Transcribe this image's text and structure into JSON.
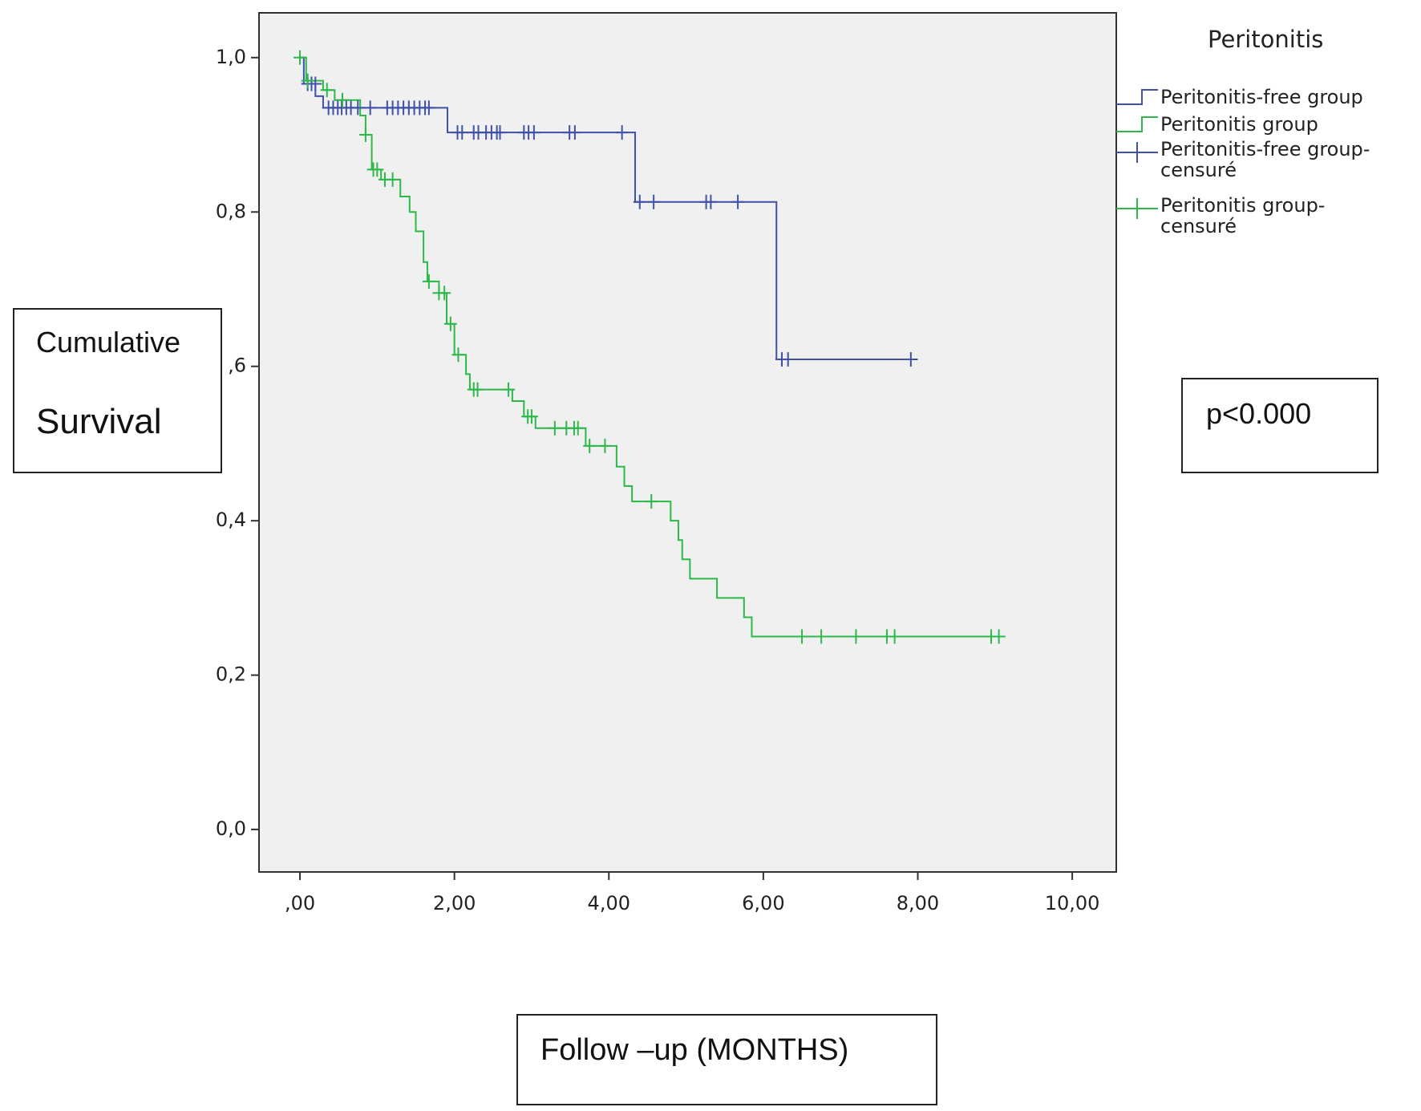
{
  "chart_data": {
    "type": "step",
    "y_label_lines": [
      "Cumulative",
      "Survival"
    ],
    "x_label": "Follow –up (MONTHS)",
    "annotation": "p<0.000",
    "legend_title": "Peritonitis",
    "legend": "right",
    "xlim": [
      -0.53,
      10.57
    ],
    "ylim": [
      -0.055,
      1.058
    ],
    "xticks": [
      {
        "value": 0,
        "label": ",00"
      },
      {
        "value": 2,
        "label": "2,00"
      },
      {
        "value": 4,
        "label": "4,00"
      },
      {
        "value": 6,
        "label": "6,00"
      },
      {
        "value": 8,
        "label": "8,00"
      },
      {
        "value": 10,
        "label": "10,00"
      }
    ],
    "yticks": [
      {
        "value": 0,
        "label": "0,0"
      },
      {
        "value": 0.2,
        "label": "0,2"
      },
      {
        "value": 0.4,
        "label": "0,4"
      },
      {
        "value": 0.6,
        "label": ",6"
      },
      {
        "value": 0.8,
        "label": "0,8"
      },
      {
        "value": 1.0,
        "label": "1,0"
      }
    ],
    "series": [
      {
        "name": "Peritonitis-free group",
        "color": "#3f51a8",
        "kind": "line",
        "x": [
          0,
          0.05,
          0.2,
          0.3,
          1.91,
          4.34,
          6.17,
          8.0
        ],
        "values": [
          1.0,
          0.966,
          0.95,
          0.935,
          0.903,
          0.813,
          0.609,
          0.609
        ]
      },
      {
        "name": "Peritonitis group",
        "color": "#2db84a",
        "kind": "line",
        "x": [
          0,
          0.08,
          0.3,
          0.45,
          0.78,
          0.85,
          0.93,
          1.05,
          1.3,
          1.42,
          1.5,
          1.6,
          1.65,
          1.8,
          1.9,
          2.0,
          2.15,
          2.2,
          2.75,
          2.9,
          3.05,
          3.7,
          4.1,
          4.2,
          4.3,
          4.8,
          4.9,
          4.95,
          5.05,
          5.4,
          5.75,
          5.85,
          9.0
        ],
        "values": [
          1.0,
          0.97,
          0.958,
          0.945,
          0.925,
          0.9,
          0.855,
          0.842,
          0.82,
          0.8,
          0.775,
          0.735,
          0.71,
          0.695,
          0.655,
          0.615,
          0.59,
          0.57,
          0.555,
          0.535,
          0.52,
          0.497,
          0.47,
          0.445,
          0.425,
          0.4,
          0.375,
          0.35,
          0.325,
          0.3,
          0.275,
          0.25,
          0.25
        ]
      },
      {
        "name": "Peritonitis-free group-censuré",
        "color": "#3f51a8",
        "kind": "censor",
        "x": [
          0.1,
          0.15,
          0.2,
          0.37,
          0.43,
          0.49,
          0.54,
          0.6,
          0.66,
          0.75,
          0.91,
          1.13,
          1.2,
          1.27,
          1.34,
          1.41,
          1.48,
          1.55,
          1.62,
          1.67,
          2.04,
          2.1,
          2.25,
          2.31,
          2.41,
          2.48,
          2.55,
          2.59,
          2.9,
          2.96,
          3.03,
          3.49,
          3.56,
          4.17,
          4.4,
          4.58,
          5.26,
          5.32,
          5.67,
          6.24,
          6.32,
          7.91
        ],
        "values": [
          0.966,
          0.966,
          0.966,
          0.935,
          0.935,
          0.935,
          0.935,
          0.935,
          0.935,
          0.935,
          0.935,
          0.935,
          0.935,
          0.935,
          0.935,
          0.935,
          0.935,
          0.935,
          0.935,
          0.935,
          0.903,
          0.903,
          0.903,
          0.903,
          0.903,
          0.903,
          0.903,
          0.903,
          0.903,
          0.903,
          0.903,
          0.903,
          0.903,
          0.903,
          0.813,
          0.813,
          0.813,
          0.813,
          0.813,
          0.609,
          0.609,
          0.609
        ]
      },
      {
        "name": "Peritonitis group-censuré",
        "color": "#2db84a",
        "kind": "censor",
        "x": [
          0,
          0.1,
          0.35,
          0.55,
          0.85,
          0.95,
          1.0,
          1.1,
          1.2,
          1.67,
          1.8,
          1.87,
          1.95,
          2.05,
          2.25,
          2.3,
          2.7,
          2.95,
          3.0,
          3.3,
          3.45,
          3.55,
          3.6,
          3.75,
          3.95,
          4.55,
          6.5,
          6.75,
          7.2,
          7.6,
          7.7,
          8.95,
          9.05
        ],
        "values": [
          1.0,
          0.97,
          0.958,
          0.945,
          0.9,
          0.855,
          0.855,
          0.842,
          0.842,
          0.71,
          0.695,
          0.695,
          0.655,
          0.615,
          0.57,
          0.57,
          0.57,
          0.535,
          0.535,
          0.52,
          0.52,
          0.52,
          0.52,
          0.497,
          0.497,
          0.425,
          0.25,
          0.25,
          0.25,
          0.25,
          0.25,
          0.25,
          0.25
        ]
      }
    ]
  }
}
